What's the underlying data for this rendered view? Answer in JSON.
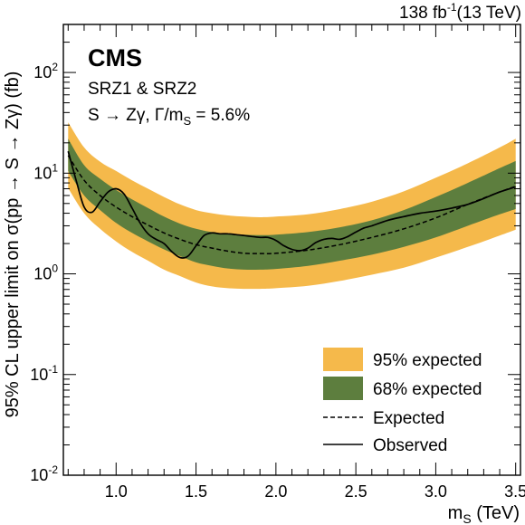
{
  "chart_data": {
    "type": "line",
    "experiment": "CMS",
    "lumi_label": "138 fb",
    "lumi_exp": "-1",
    "lumi_energy": "(13 TeV)",
    "annotation_region": "SRZ1 & SRZ2",
    "annotation_model": "S → Zγ,  Γ/m",
    "annotation_model_sub": "S",
    "annotation_model_value": " = 5.6%",
    "xlabel_main": "m",
    "xlabel_sub": "S",
    "xlabel_unit": " (TeV)",
    "ylabel": "95% CL upper limit on σ(pp → S → Zγ) (fb)",
    "x_scale": "linear",
    "y_scale": "log",
    "xlim": [
      0.67,
      3.53
    ],
    "ylim": [
      0.01,
      300
    ],
    "x_ticks": [
      "1.0",
      "1.5",
      "2.0",
      "2.5",
      "3.0",
      "3.5"
    ],
    "y_ticks": [
      {
        "base": "10",
        "exp": "-2",
        "value": 0.01
      },
      {
        "base": "10",
        "exp": "-1",
        "value": 0.1
      },
      {
        "base": "10",
        "exp": "0",
        "value": 1
      },
      {
        "base": "10",
        "exp": "1",
        "value": 10
      },
      {
        "base": "10",
        "exp": "2",
        "value": 100
      }
    ],
    "legend_position": "bottom-right",
    "series": [
      {
        "name": "95% expected",
        "style": "band",
        "color": "#F5B94B",
        "x": [
          0.7,
          0.8,
          0.9,
          1.0,
          1.1,
          1.2,
          1.3,
          1.4,
          1.5,
          1.6,
          1.7,
          1.8,
          1.9,
          2.0,
          2.2,
          2.4,
          2.6,
          2.8,
          3.0,
          3.2,
          3.4,
          3.5
        ],
        "low": [
          7.1,
          4.0,
          2.8,
          2.1,
          1.65,
          1.35,
          1.1,
          0.95,
          0.82,
          0.75,
          0.72,
          0.71,
          0.71,
          0.72,
          0.76,
          0.85,
          0.98,
          1.15,
          1.45,
          1.85,
          2.4,
          2.75
        ],
        "high": [
          32,
          18,
          13,
          10.5,
          8.5,
          7.0,
          5.8,
          4.9,
          4.3,
          4.0,
          3.8,
          3.7,
          3.65,
          3.7,
          3.9,
          4.4,
          5.2,
          6.6,
          9.0,
          12.5,
          18,
          22
        ]
      },
      {
        "name": "68% expected",
        "style": "band",
        "color": "#5D7E3E",
        "x": [
          0.7,
          0.8,
          0.9,
          1.0,
          1.1,
          1.2,
          1.3,
          1.4,
          1.5,
          1.6,
          1.7,
          1.8,
          1.9,
          2.0,
          2.2,
          2.4,
          2.6,
          2.8,
          3.0,
          3.2,
          3.4,
          3.5
        ],
        "low": [
          10.5,
          6.0,
          4.3,
          3.2,
          2.55,
          2.1,
          1.75,
          1.5,
          1.3,
          1.2,
          1.13,
          1.1,
          1.1,
          1.12,
          1.2,
          1.35,
          1.55,
          1.85,
          2.3,
          3.0,
          3.9,
          4.4
        ],
        "high": [
          22,
          12,
          8.8,
          6.8,
          5.5,
          4.5,
          3.7,
          3.15,
          2.8,
          2.6,
          2.5,
          2.45,
          2.42,
          2.45,
          2.6,
          2.9,
          3.4,
          4.3,
          5.8,
          8.0,
          11.2,
          13.2
        ]
      },
      {
        "name": "Expected",
        "style": "dashed",
        "color": "#000000",
        "x": [
          0.7,
          0.8,
          0.9,
          1.0,
          1.1,
          1.2,
          1.3,
          1.4,
          1.5,
          1.6,
          1.7,
          1.8,
          1.9,
          2.0,
          2.2,
          2.4,
          2.6,
          2.8,
          3.0,
          3.2,
          3.4,
          3.5
        ],
        "y": [
          15,
          8.5,
          6.0,
          4.6,
          3.7,
          3.05,
          2.55,
          2.2,
          1.95,
          1.8,
          1.68,
          1.6,
          1.59,
          1.6,
          1.72,
          1.95,
          2.3,
          2.8,
          3.6,
          4.9,
          6.5,
          7.4
        ]
      },
      {
        "name": "Observed",
        "style": "solid",
        "color": "#000000",
        "x": [
          0.7,
          0.75,
          0.8,
          0.85,
          0.9,
          0.95,
          1.0,
          1.05,
          1.1,
          1.15,
          1.2,
          1.25,
          1.3,
          1.35,
          1.4,
          1.45,
          1.5,
          1.55,
          1.6,
          1.65,
          1.7,
          1.75,
          1.8,
          1.85,
          1.9,
          1.95,
          2.0,
          2.05,
          2.1,
          2.15,
          2.2,
          2.25,
          2.3,
          2.35,
          2.4,
          2.45,
          2.5,
          2.55,
          2.6,
          2.7,
          2.8,
          2.9,
          3.0,
          3.1,
          3.2,
          3.3,
          3.4,
          3.5
        ],
        "y": [
          16.5,
          8.5,
          4.6,
          4.1,
          5.2,
          6.5,
          7.0,
          6.2,
          4.5,
          3.2,
          2.5,
          2.2,
          2.0,
          1.65,
          1.45,
          1.5,
          1.9,
          2.4,
          2.55,
          2.5,
          2.5,
          2.45,
          2.4,
          2.35,
          2.3,
          2.3,
          2.15,
          1.9,
          1.75,
          1.7,
          1.8,
          2.05,
          2.2,
          2.25,
          2.2,
          2.35,
          2.6,
          2.85,
          3.0,
          3.4,
          3.7,
          4.0,
          4.2,
          4.5,
          4.9,
          5.6,
          6.5,
          7.3
        ]
      }
    ]
  }
}
